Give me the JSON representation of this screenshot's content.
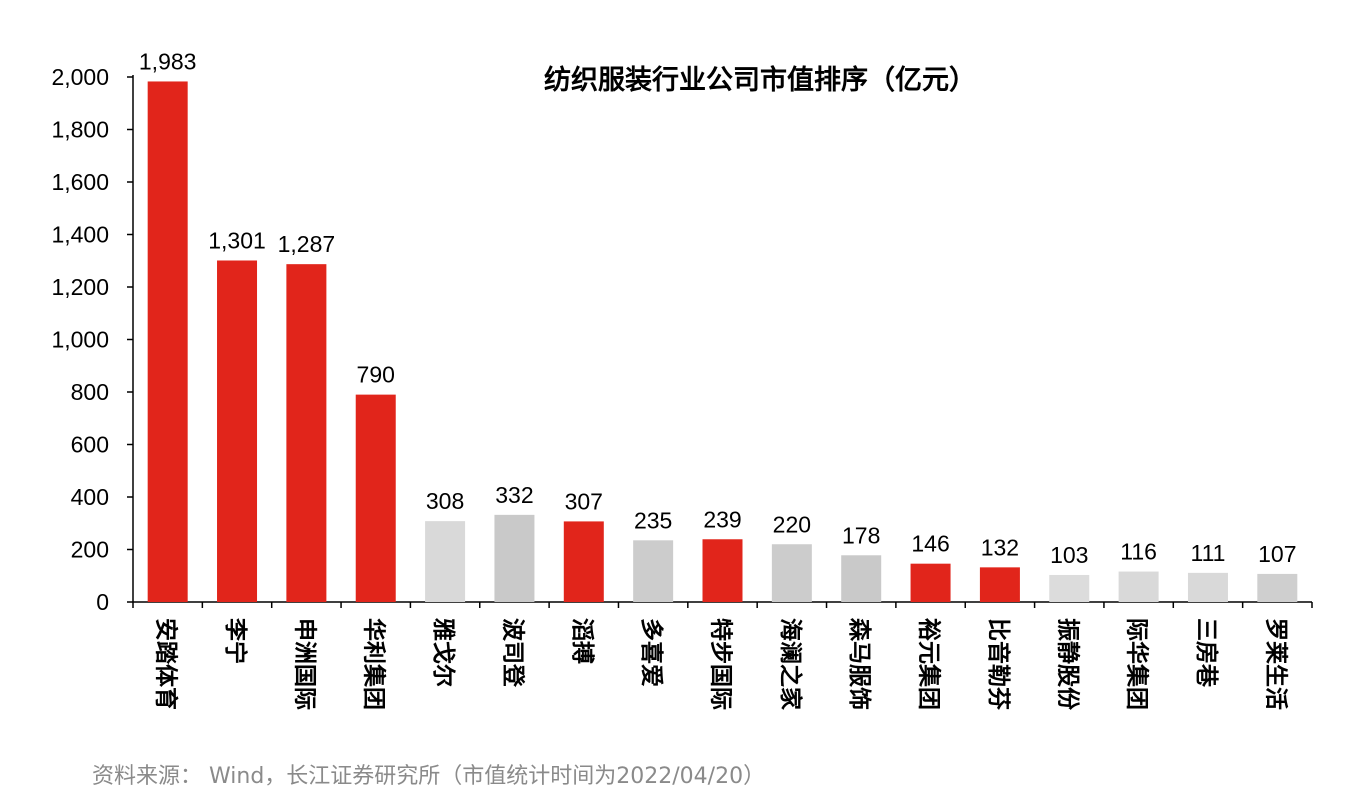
{
  "chart_data": {
    "type": "bar",
    "title": "纺织服装行业公司市值排序（亿元）",
    "xlabel": "",
    "ylabel": "",
    "ylim": [
      0,
      2000
    ],
    "yticks": [
      0,
      200,
      400,
      600,
      800,
      1000,
      1200,
      1400,
      1600,
      1800,
      2000
    ],
    "ytick_labels": [
      "0",
      "200",
      "400",
      "600",
      "800",
      "1,000",
      "1,200",
      "1,400",
      "1,600",
      "1,800",
      "2,000"
    ],
    "categories": [
      "安踏体育",
      "李宁",
      "申洲国际",
      "华利集团",
      "雅戈尔",
      "波司登",
      "滔搏",
      "多喜爱",
      "特步国际",
      "海澜之家",
      "森马服饰",
      "裕元集团",
      "比音勒芬",
      "振静股份",
      "际华集团",
      "三房巷",
      "罗莱生活"
    ],
    "values": [
      1983,
      1301,
      1287,
      790,
      308,
      332,
      307,
      235,
      239,
      220,
      178,
      146,
      132,
      103,
      116,
      111,
      107
    ],
    "value_labels": [
      "1,983",
      "1,301",
      "1,287",
      "790",
      "308",
      "332",
      "307",
      "235",
      "239",
      "220",
      "178",
      "146",
      "132",
      "103",
      "116",
      "111",
      "107"
    ],
    "bar_colors": [
      "#e1251b",
      "#e1251b",
      "#e1251b",
      "#e1251b",
      "#d9d9d9",
      "#c9c9c9",
      "#e1251b",
      "#cccccc",
      "#e1251b",
      "#cccccc",
      "#c9c9c9",
      "#e1251b",
      "#e1251b",
      "#dcdcdc",
      "#d9d9d9",
      "#d9d9d9",
      "#cfcfcf"
    ],
    "grid": false,
    "legend": "none"
  },
  "source_note": "资料来源： Wind，长江证券研究所（市值统计时间为2022/04/20）"
}
